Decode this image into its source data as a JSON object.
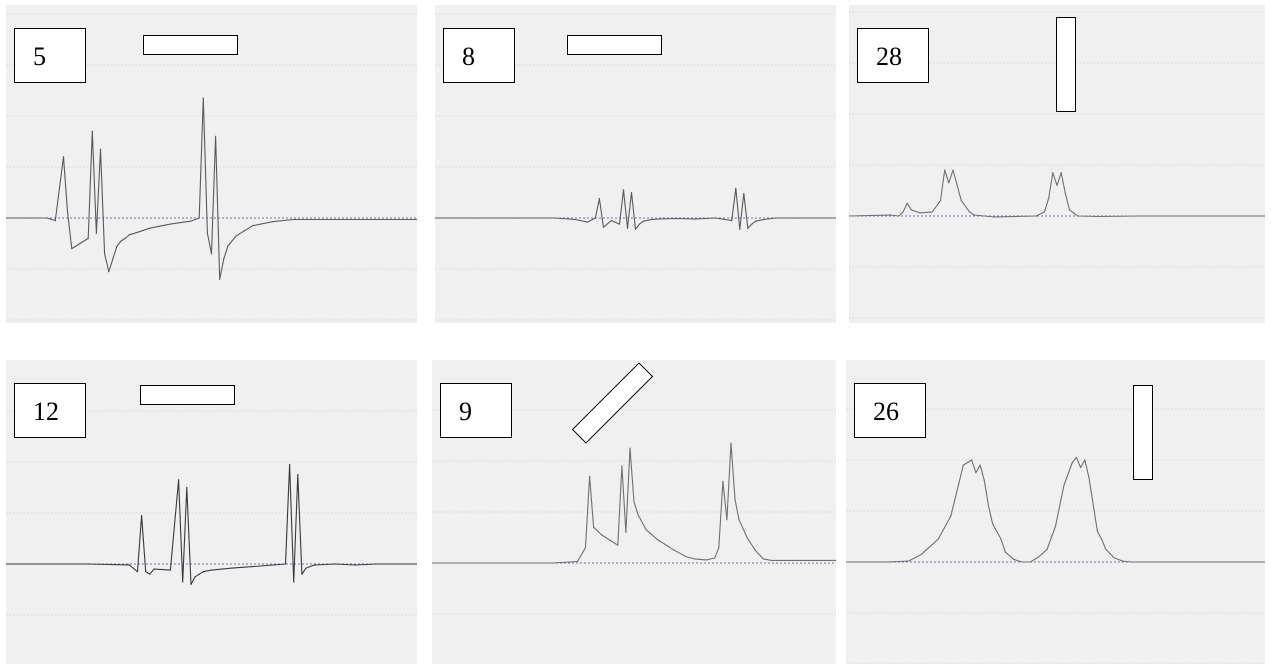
{
  "chart_data": [
    {
      "type": "line",
      "panel_label": "5",
      "orientation": "horizontal",
      "baseline": 0,
      "ylim": [
        -1.0,
        2.0
      ],
      "grid": true,
      "color": "#5a5a5a",
      "x": [
        0,
        5,
        10,
        12,
        14,
        15,
        16,
        18,
        20,
        21,
        22,
        23,
        24,
        25,
        26,
        27,
        28,
        29,
        30,
        32,
        35,
        40,
        45,
        47,
        48,
        49,
        50,
        51,
        52,
        53,
        54,
        55,
        56,
        58,
        60,
        65,
        70,
        75,
        80,
        90,
        100
      ],
      "values": [
        0.0,
        0.0,
        0.0,
        -0.05,
        1.2,
        0.1,
        -0.6,
        -0.5,
        -0.4,
        1.7,
        -0.3,
        1.35,
        -0.7,
        -1.05,
        -0.8,
        -0.55,
        -0.45,
        -0.4,
        -0.33,
        -0.28,
        -0.2,
        -0.12,
        -0.06,
        0.0,
        2.35,
        -0.3,
        -0.7,
        1.6,
        -1.2,
        -0.8,
        -0.55,
        -0.45,
        -0.35,
        -0.25,
        -0.15,
        -0.07,
        -0.03,
        -0.03,
        -0.03,
        -0.03,
        -0.03
      ]
    },
    {
      "type": "line",
      "panel_label": "8",
      "orientation": "horizontal",
      "baseline": 0,
      "ylim": [
        -1.0,
        2.0
      ],
      "grid": true,
      "color": "#5a5a5a",
      "x": [
        0,
        10,
        20,
        30,
        35,
        38,
        40,
        41,
        42,
        44,
        46,
        47,
        48,
        49,
        50,
        51,
        52,
        54,
        56,
        60,
        65,
        70,
        74,
        75,
        76,
        77,
        78,
        79,
        80,
        82,
        85,
        90,
        100
      ],
      "values": [
        0.0,
        0.0,
        0.0,
        0.0,
        -0.03,
        -0.08,
        0.0,
        0.38,
        -0.18,
        -0.05,
        -0.12,
        0.55,
        -0.2,
        0.5,
        -0.22,
        -0.12,
        -0.06,
        -0.03,
        -0.02,
        -0.01,
        -0.02,
        0.0,
        -0.05,
        0.58,
        -0.22,
        0.48,
        -0.2,
        -0.12,
        -0.06,
        -0.03,
        0.0,
        0.0,
        0.0
      ]
    },
    {
      "type": "line",
      "panel_label": "28",
      "orientation": "vertical",
      "baseline": 0,
      "ylim": [
        -1.0,
        2.0
      ],
      "grid": true,
      "color": "#707070",
      "x": [
        0,
        10,
        12,
        13,
        14,
        15,
        17,
        20,
        22,
        23,
        24,
        25,
        26,
        27,
        29,
        30,
        35,
        45,
        47,
        48,
        49,
        50,
        51,
        52,
        53,
        55,
        60,
        70,
        85,
        100
      ],
      "values": [
        0.0,
        0.02,
        0.0,
        0.08,
        0.25,
        0.12,
        0.06,
        0.08,
        0.3,
        0.9,
        0.65,
        0.9,
        0.6,
        0.3,
        0.08,
        0.02,
        -0.02,
        0.0,
        0.08,
        0.35,
        0.85,
        0.6,
        0.85,
        0.45,
        0.12,
        0.0,
        -0.01,
        0.0,
        0.0,
        0.0
      ]
    },
    {
      "type": "line",
      "panel_label": "12",
      "orientation": "horizontal",
      "baseline": 0,
      "ylim": [
        -1.0,
        2.0
      ],
      "grid": true,
      "color": "#3a3a3a",
      "x": [
        0,
        20,
        30,
        32,
        33,
        34,
        35,
        36,
        40,
        42,
        43,
        44,
        45,
        46,
        47,
        48,
        50,
        55,
        60,
        65,
        68,
        69,
        70,
        71,
        72,
        73,
        75,
        80,
        85,
        90,
        100
      ],
      "values": [
        0.0,
        0.0,
        -0.02,
        -0.15,
        0.95,
        -0.15,
        -0.2,
        -0.1,
        -0.12,
        1.65,
        -0.35,
        1.5,
        -0.4,
        -0.25,
        -0.2,
        -0.15,
        -0.12,
        -0.08,
        -0.05,
        -0.02,
        0.0,
        1.95,
        -0.35,
        1.75,
        -0.2,
        -0.08,
        -0.02,
        0.0,
        -0.02,
        0.0,
        0.0
      ]
    },
    {
      "type": "line",
      "panel_label": "9",
      "orientation": "diagonal",
      "baseline": 0,
      "ylim": [
        -1.0,
        2.0
      ],
      "grid": true,
      "color": "#707070",
      "x": [
        0,
        20,
        30,
        36,
        38,
        39,
        40,
        42,
        44,
        46,
        47,
        48,
        49,
        50,
        51,
        53,
        56,
        60,
        63,
        65,
        68,
        70,
        71,
        72,
        73,
        74,
        75,
        76,
        78,
        80,
        82,
        84,
        90,
        100
      ],
      "values": [
        0.0,
        0.0,
        0.0,
        0.03,
        0.3,
        1.7,
        0.7,
        0.55,
        0.45,
        0.35,
        1.9,
        0.6,
        2.25,
        1.2,
        0.95,
        0.65,
        0.45,
        0.25,
        0.12,
        0.08,
        0.06,
        0.1,
        0.3,
        1.6,
        0.85,
        2.35,
        1.25,
        0.85,
        0.5,
        0.25,
        0.08,
        0.05,
        0.05,
        0.05
      ]
    },
    {
      "type": "line",
      "panel_label": "26",
      "orientation": "vertical",
      "baseline": 0,
      "ylim": [
        -1.0,
        2.0
      ],
      "grid": true,
      "color": "#707070",
      "x": [
        0,
        10,
        15,
        18,
        20,
        22,
        25,
        28,
        30,
        31,
        32,
        33,
        34,
        35,
        37,
        38,
        40,
        42,
        44,
        46,
        48,
        50,
        52,
        54,
        55,
        56,
        57,
        58,
        60,
        61,
        62,
        64,
        66,
        68,
        70,
        80,
        90,
        100
      ],
      "values": [
        0.0,
        0.0,
        0.02,
        0.15,
        0.3,
        0.45,
        0.9,
        1.9,
        2.0,
        1.75,
        1.9,
        1.6,
        1.1,
        0.75,
        0.45,
        0.2,
        0.05,
        0.0,
        0.0,
        0.1,
        0.25,
        0.7,
        1.5,
        1.95,
        2.05,
        1.85,
        2.0,
        1.65,
        0.6,
        0.45,
        0.25,
        0.08,
        0.02,
        0.0,
        0.0,
        0.0,
        0.0,
        0.0
      ]
    }
  ]
}
